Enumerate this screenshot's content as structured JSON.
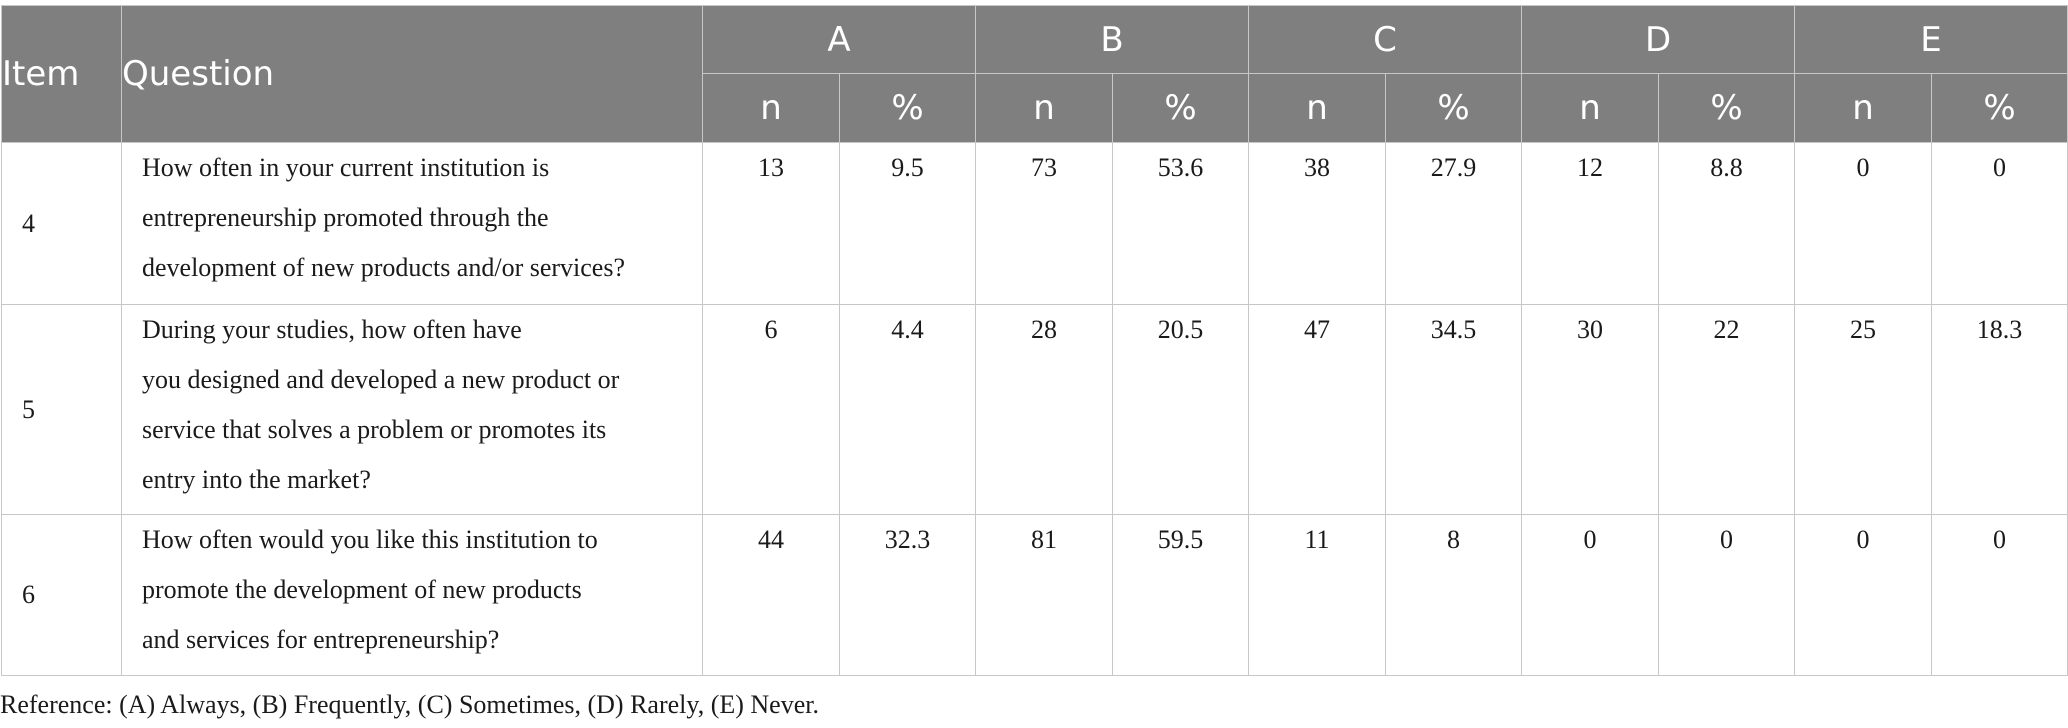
{
  "table": {
    "header": {
      "item": "Item",
      "question": "Question",
      "groups": [
        "A",
        "B",
        "C",
        "D",
        "E"
      ],
      "sub_n": "n",
      "sub_pct": "%"
    },
    "rows": [
      {
        "item": "4",
        "question_lines": [
          "How often in your current institution is",
          "entrepreneurship promoted through the",
          "development of new products and/or services?"
        ],
        "values": [
          "13",
          "9.5",
          "73",
          "53.6",
          "38",
          "27.9",
          "12",
          "8.8",
          "0",
          "0"
        ]
      },
      {
        "item": "5",
        "question_lines": [
          "During your studies, how often have",
          "you designed and developed a new product or",
          "service that solves a problem or promotes its",
          "entry into the market?"
        ],
        "values": [
          "6",
          "4.4",
          "28",
          "20.5",
          "47",
          "34.5",
          "30",
          "22",
          "25",
          "18.3"
        ]
      },
      {
        "item": "6",
        "question_lines": [
          "How often would you like this institution to",
          "promote the development of new products",
          "and services for entrepreneurship?"
        ],
        "values": [
          "44",
          "32.3",
          "81",
          "59.5",
          "11",
          "8",
          "0",
          "0",
          "0",
          "0"
        ]
      }
    ]
  },
  "note": "Reference: (A) Always, (B) Frequently, (C) Sometimes, (D) Rarely, (E) Never.",
  "colors": {
    "header_bg": "#7f7f80",
    "header_text": "#ffffff",
    "border": "#c7c7c7"
  }
}
